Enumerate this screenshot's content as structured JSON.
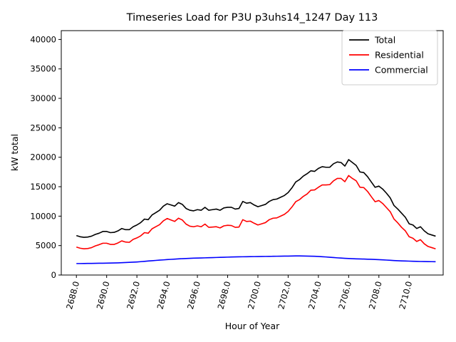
{
  "chart_data": {
    "type": "line",
    "title": "Timeseries Load for P3U p3uhs14_1247  Day 113",
    "xlabel": "Hour of Year",
    "ylabel": "kW total",
    "xlim": [
      2687.0,
      2712.25
    ],
    "ylim": [
      0,
      41500
    ],
    "xticks": [
      2688,
      2690,
      2692,
      2694,
      2696,
      2698,
      2700,
      2702,
      2704,
      2706,
      2708,
      2710
    ],
    "xtick_labels": [
      "2688.0",
      "2690.0",
      "2692.0",
      "2694.0",
      "2696.0",
      "2698.0",
      "2700.0",
      "2702.0",
      "2704.0",
      "2706.0",
      "2708.0",
      "2710.0"
    ],
    "yticks": [
      0,
      5000,
      10000,
      15000,
      20000,
      25000,
      30000,
      35000,
      40000
    ],
    "ytick_labels": [
      "0",
      "5000",
      "10000",
      "15000",
      "20000",
      "25000",
      "30000",
      "35000",
      "40000"
    ],
    "grid": false,
    "legend_position": "top-right",
    "x_start": 2688.0,
    "x_step": 0.25,
    "series": [
      {
        "name": "Total",
        "color": "#000000",
        "values": [
          6700,
          6500,
          6400,
          6450,
          6600,
          6900,
          7100,
          7400,
          7400,
          7200,
          7250,
          7500,
          7900,
          7700,
          7700,
          8200,
          8500,
          8900,
          9500,
          9400,
          10200,
          10600,
          11000,
          11700,
          12100,
          11900,
          11700,
          12300,
          12000,
          11300,
          11000,
          10900,
          11100,
          11000,
          11500,
          11000,
          11100,
          11200,
          11000,
          11400,
          11500,
          11500,
          11200,
          11300,
          12500,
          12200,
          12300,
          11900,
          11600,
          11800,
          12000,
          12500,
          12800,
          12900,
          13200,
          13500,
          14000,
          14800,
          15800,
          16200,
          16800,
          17200,
          17700,
          17600,
          18100,
          18400,
          18300,
          18300,
          18900,
          19200,
          19100,
          18500,
          19600,
          19100,
          18600,
          17500,
          17400,
          16700,
          15800,
          14900,
          15100,
          14600,
          13900,
          13100,
          11800,
          11200,
          10500,
          9800,
          8700,
          8500,
          7900,
          8200,
          7500,
          7000,
          6800,
          6600
        ]
      },
      {
        "name": "Residential",
        "color": "#ff0000",
        "values": [
          4750,
          4550,
          4450,
          4500,
          4650,
          4950,
          5150,
          5400,
          5400,
          5200,
          5200,
          5450,
          5800,
          5600,
          5550,
          6050,
          6300,
          6650,
          7200,
          7100,
          7850,
          8200,
          8550,
          9200,
          9600,
          9350,
          9100,
          9650,
          9350,
          8650,
          8300,
          8200,
          8350,
          8200,
          8650,
          8100,
          8150,
          8200,
          8000,
          8350,
          8450,
          8400,
          8100,
          8150,
          9400,
          9100,
          9150,
          8800,
          8500,
          8700,
          8900,
          9400,
          9650,
          9700,
          10000,
          10300,
          10800,
          11550,
          12450,
          12800,
          13350,
          13750,
          14400,
          14450,
          14900,
          15300,
          15300,
          15350,
          16000,
          16400,
          16400,
          15850,
          16900,
          16400,
          16000,
          14900,
          14850,
          14200,
          13300,
          12450,
          12650,
          12150,
          11450,
          10750,
          9500,
          8850,
          8100,
          7500,
          6500,
          6250,
          5700,
          6000,
          5300,
          4850,
          4650,
          4450
        ]
      },
      {
        "name": "Commercial",
        "color": "#0000ff",
        "values": [
          1950,
          1950,
          1960,
          1970,
          1980,
          1990,
          2000,
          2010,
          2020,
          2030,
          2050,
          2070,
          2100,
          2120,
          2150,
          2180,
          2220,
          2270,
          2320,
          2380,
          2430,
          2480,
          2530,
          2570,
          2620,
          2660,
          2700,
          2740,
          2780,
          2810,
          2840,
          2860,
          2880,
          2900,
          2920,
          2940,
          2960,
          2980,
          3000,
          3020,
          3040,
          3060,
          3080,
          3090,
          3100,
          3110,
          3120,
          3130,
          3140,
          3150,
          3160,
          3170,
          3180,
          3190,
          3200,
          3210,
          3220,
          3230,
          3240,
          3240,
          3230,
          3220,
          3200,
          3180,
          3150,
          3110,
          3070,
          3020,
          2970,
          2920,
          2880,
          2840,
          2800,
          2770,
          2750,
          2730,
          2710,
          2690,
          2670,
          2640,
          2610,
          2580,
          2540,
          2500,
          2460,
          2430,
          2400,
          2380,
          2360,
          2340,
          2320,
          2300,
          2290,
          2280,
          2270,
          2260
        ]
      }
    ]
  }
}
